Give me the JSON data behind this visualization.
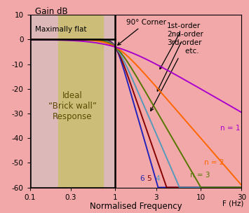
{
  "background_color": "#F2A8A8",
  "plot_bg_color": "#F2A8A8",
  "xlim": [
    0.1,
    30
  ],
  "ylim": [
    -60,
    10
  ],
  "yticks": [
    10,
    0,
    -10,
    -20,
    -30,
    -40,
    -50,
    -60
  ],
  "xticks": [
    0.1,
    0.3,
    1,
    3,
    10,
    30
  ],
  "xtick_labels": [
    "0.1",
    "0.3",
    "1",
    "3",
    "10",
    "30"
  ],
  "orders": [
    1,
    2,
    3,
    4,
    5,
    6
  ],
  "line_colors": [
    "#AA00CC",
    "#FF6600",
    "#557700",
    "#5599BB",
    "#880000",
    "#2222BB"
  ],
  "passband_color1": "#DDB8B8",
  "passband_color2": "#CCBE78",
  "xlabel": "Normalised Frequency",
  "freq_label": "F (Hz)"
}
